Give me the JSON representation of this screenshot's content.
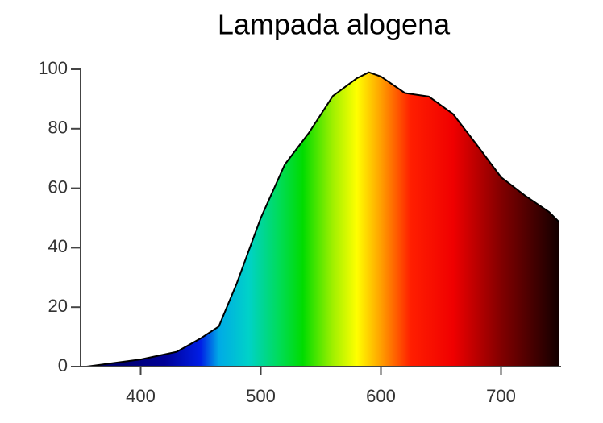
{
  "chart_data": {
    "type": "area",
    "title": "Lampada alogena",
    "x": [
      355,
      400,
      430,
      450,
      465,
      480,
      500,
      520,
      540,
      560,
      580,
      590,
      600,
      620,
      640,
      660,
      680,
      700,
      720,
      740,
      748
    ],
    "values": [
      0,
      2.4,
      5,
      9.5,
      13.5,
      28,
      50,
      68,
      78.6,
      91,
      97,
      99,
      97.6,
      92,
      90.8,
      85,
      74.5,
      63.7,
      57.5,
      52,
      48.8
    ],
    "xlim": [
      350,
      750
    ],
    "xticks": [
      400,
      500,
      600,
      700
    ],
    "ylim": [
      0,
      100
    ],
    "yticks": [
      0,
      20,
      40,
      60,
      80,
      100
    ],
    "line_color": "#000000"
  }
}
